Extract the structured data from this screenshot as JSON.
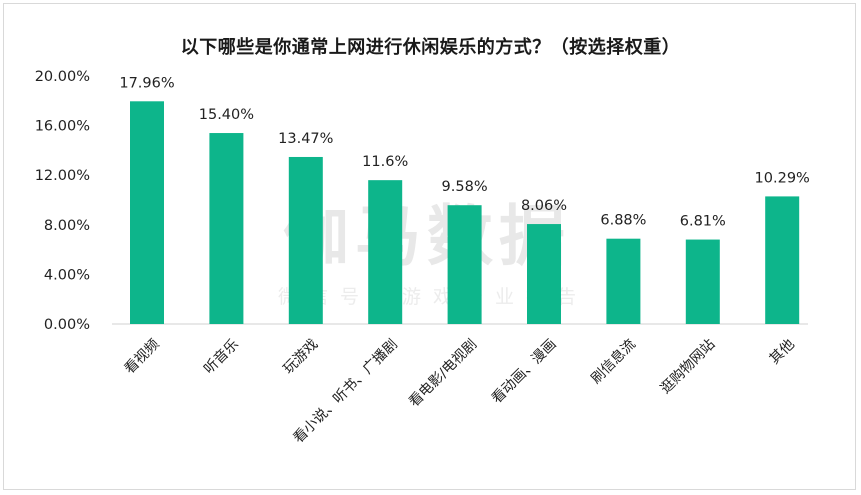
{
  "chart_data": {
    "type": "bar",
    "title": "以下哪些是你通常上网进行休闲娱乐的方式？（按选择权重）",
    "categories": [
      "看视频",
      "听音乐",
      "玩游戏",
      "看小说、听书、广播剧",
      "看电影/电视剧",
      "看动画、漫画",
      "刷信息流",
      "逛购物网站",
      "其他"
    ],
    "values": [
      17.96,
      15.4,
      13.47,
      11.6,
      9.58,
      8.06,
      6.88,
      6.81,
      10.29
    ],
    "value_labels": [
      "17.96%",
      "15.40%",
      "13.47%",
      "11.6%",
      "9.58%",
      "8.06%",
      "6.88%",
      "6.81%",
      "10.29%"
    ],
    "yticks": [
      "0.00%",
      "4.00%",
      "8.00%",
      "12.00%",
      "16.00%",
      "20.00%"
    ],
    "ylim": [
      0,
      20
    ],
    "xlabel": "",
    "ylabel": "",
    "grid": false,
    "legend": "none",
    "bar_color": "#0db58b"
  },
  "watermark": {
    "main": "伽马数据",
    "sub": "微信号：游戏产业报告"
  }
}
